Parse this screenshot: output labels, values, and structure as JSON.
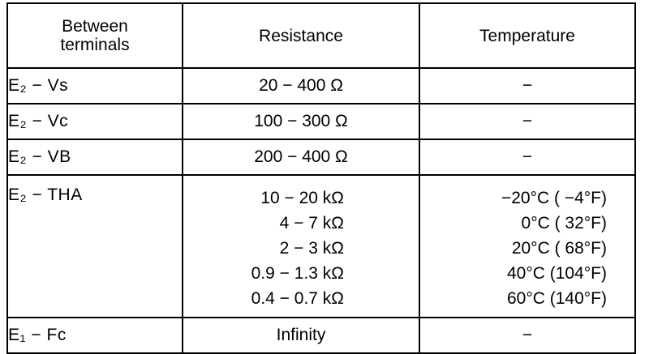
{
  "header": {
    "col1_line1": "Between",
    "col1_line2": "terminals",
    "col2": "Resistance",
    "col3": "Temperature"
  },
  "rows": [
    {
      "terminal": "E₂ − Vs",
      "resistance": "20 − 400 Ω",
      "temperature": "−"
    },
    {
      "terminal": "E₂ − Vc",
      "resistance": "100 − 300 Ω",
      "temperature": "−"
    },
    {
      "terminal": "E₂ − VB",
      "resistance": "200 − 400 Ω",
      "temperature": "−"
    },
    {
      "terminal": "E₂ − THA",
      "resistance": [
        "10 − 20 kΩ",
        "4 − 7 kΩ",
        "2 − 3 kΩ",
        "0.9 − 1.3 kΩ",
        "0.4 − 0.7 kΩ"
      ],
      "temperature": [
        "−20°C ( −4°F)",
        "0°C ( 32°F)",
        "20°C ( 68°F)",
        "40°C (104°F)",
        "60°C (140°F)"
      ]
    },
    {
      "terminal": "E₁ − Fc",
      "resistance": "Infinity",
      "temperature": "−"
    }
  ]
}
